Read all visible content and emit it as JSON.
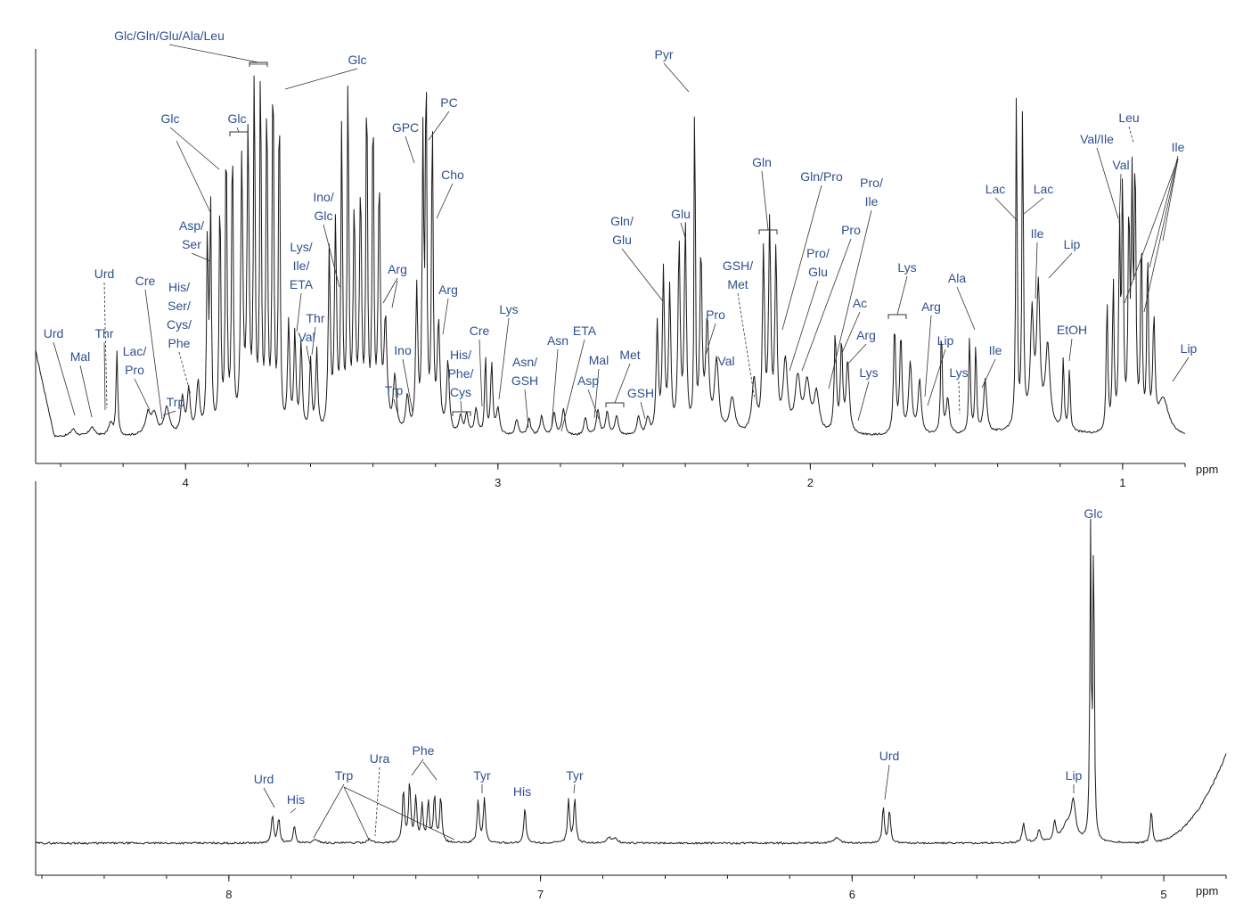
{
  "chart_data": [
    {
      "type": "line",
      "title": "",
      "xlabel": "ppm",
      "ylabel": "",
      "x_reversed": true,
      "xlim": [
        4.48,
        0.8
      ],
      "ticks": [
        "4",
        "3",
        "2",
        "1"
      ],
      "tick_values": [
        4,
        3,
        2,
        1
      ],
      "grid": false,
      "annotations": [
        {
          "label": "Glc/Gln/Glu/Ala/Leu",
          "ppm": 3.76
        },
        {
          "label": "Glc",
          "ppm": 3.55
        },
        {
          "label": "Glc",
          "ppm": 3.88
        },
        {
          "label": "Glc",
          "ppm": 4.08
        },
        {
          "label": "Asp/\nSer",
          "ppm": 3.96
        },
        {
          "label": "Urd",
          "ppm": 4.26
        },
        {
          "label": "Cre",
          "ppm": 4.06
        },
        {
          "label": "His/\nSer/\nCys/\nPhe",
          "ppm": 3.98
        },
        {
          "label": "Urd",
          "ppm": 4.36
        },
        {
          "label": "Mal",
          "ppm": 4.3
        },
        {
          "label": "Thr",
          "ppm": 4.24
        },
        {
          "label": "Lac/\nPro",
          "ppm": 4.12
        },
        {
          "label": "Trp",
          "ppm": 4.05
        },
        {
          "label": "Ino/\nGlc",
          "ppm": 3.53
        },
        {
          "label": "Lys/\nIle/\nETA",
          "ppm": 3.68
        },
        {
          "label": "Thr",
          "ppm": 3.58
        },
        {
          "label": "Val",
          "ppm": 3.6
        },
        {
          "label": "GPC",
          "ppm": 3.23
        },
        {
          "label": "PC",
          "ppm": 3.2
        },
        {
          "label": "Cho",
          "ppm": 3.19
        },
        {
          "label": "Arg",
          "ppm": 3.23
        },
        {
          "label": "Arg",
          "ppm": 3.16
        },
        {
          "label": "Ino",
          "ppm": 3.28
        },
        {
          "label": "Trp",
          "ppm": 3.3
        },
        {
          "label": "His/\nPhe/\nCys",
          "ppm": 3.12
        },
        {
          "label": "Cre",
          "ppm": 3.03
        },
        {
          "label": "Lys",
          "ppm": 3.02
        },
        {
          "label": "Asn/\nGSH",
          "ppm": 2.95
        },
        {
          "label": "Asn",
          "ppm": 2.86
        },
        {
          "label": "ETA",
          "ppm": 2.81
        },
        {
          "label": "Mal",
          "ppm": 2.68
        },
        {
          "label": "Asp",
          "ppm": 2.68
        },
        {
          "label": "Met",
          "ppm": 2.64
        },
        {
          "label": "GSH",
          "ppm": 2.55
        },
        {
          "label": "Gln/\nGlu",
          "ppm": 2.45
        },
        {
          "label": "Glu",
          "ppm": 2.35
        },
        {
          "label": "Pyr",
          "ppm": 2.37
        },
        {
          "label": "Pro",
          "ppm": 2.34
        },
        {
          "label": "Val",
          "ppm": 2.26
        },
        {
          "label": "GSH/\nMet",
          "ppm": 2.17
        },
        {
          "label": "Gln",
          "ppm": 2.14
        },
        {
          "label": "Gln/Pro",
          "ppm": 2.1
        },
        {
          "label": "Pro/\nGlu",
          "ppm": 2.06
        },
        {
          "label": "Pro",
          "ppm": 2.01
        },
        {
          "label": "Pro/\nIle",
          "ppm": 1.97
        },
        {
          "label": "Ac",
          "ppm": 1.92
        },
        {
          "label": "Arg",
          "ppm": 1.9
        },
        {
          "label": "Lys",
          "ppm": 1.88
        },
        {
          "label": "Lys",
          "ppm": 1.72
        },
        {
          "label": "Arg",
          "ppm": 1.66
        },
        {
          "label": "Lip",
          "ppm": 1.58
        },
        {
          "label": "Lys",
          "ppm": 1.5
        },
        {
          "label": "Ala",
          "ppm": 1.48
        },
        {
          "label": "Ile",
          "ppm": 1.46
        },
        {
          "label": "Lac",
          "ppm": 1.33
        },
        {
          "label": "Lac",
          "ppm": 1.32
        },
        {
          "label": "Ile",
          "ppm": 1.26
        },
        {
          "label": "Lip",
          "ppm": 1.28
        },
        {
          "label": "EtOH",
          "ppm": 1.18
        },
        {
          "label": "Val/Ile",
          "ppm": 1.01
        },
        {
          "label": "Val",
          "ppm": 0.99
        },
        {
          "label": "Leu",
          "ppm": 0.96
        },
        {
          "label": "Ile",
          "ppm": 0.93
        },
        {
          "label": "Lip",
          "ppm": 0.88
        }
      ]
    },
    {
      "type": "line",
      "title": "",
      "xlabel": "ppm",
      "ylabel": "",
      "x_reversed": true,
      "xlim": [
        8.62,
        4.8
      ],
      "ticks": [
        "8",
        "7",
        "6",
        "5"
      ],
      "tick_values": [
        8,
        7,
        6,
        5
      ],
      "grid": false,
      "annotations": [
        {
          "label": "Urd",
          "ppm": 7.86
        },
        {
          "label": "His",
          "ppm": 7.8
        },
        {
          "label": "Trp",
          "ppm": 7.72
        },
        {
          "label": "Ura",
          "ppm": 7.54
        },
        {
          "label": "Phe",
          "ppm": 7.42
        },
        {
          "label": "Tyr",
          "ppm": 7.19
        },
        {
          "label": "His",
          "ppm": 7.05
        },
        {
          "label": "Tyr",
          "ppm": 6.9
        },
        {
          "label": "Urd",
          "ppm": 5.9
        },
        {
          "label": "Lip",
          "ppm": 5.29
        },
        {
          "label": "Glc",
          "ppm": 5.23
        }
      ]
    }
  ]
}
